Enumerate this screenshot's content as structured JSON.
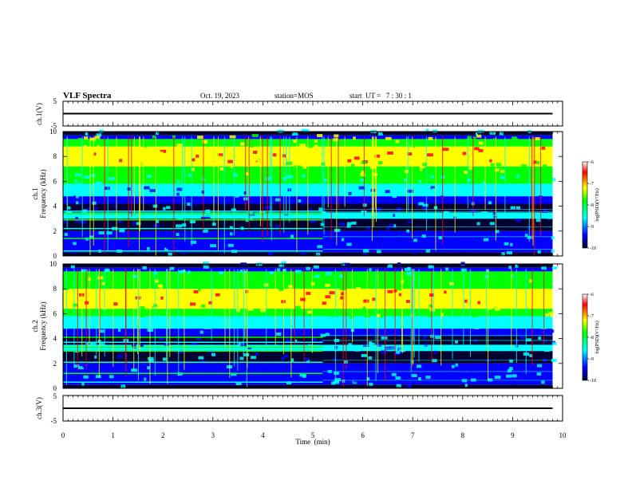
{
  "header": {
    "title": "VLF Spectra",
    "date": "Oct. 19, 2023",
    "station": "station=MOS",
    "start": "start  UT =   7 : 30 : 1"
  },
  "chart_data": {
    "type": "heatmap",
    "title": "VLF Spectra",
    "xlabel": "Time  (min)",
    "xlim": [
      0,
      10
    ],
    "xticks": [
      "0",
      "1",
      "2",
      "3",
      "4",
      "5",
      "6",
      "7",
      "8",
      "9",
      "10"
    ],
    "panels": [
      {
        "name": "ch.1(V)",
        "type": "line",
        "ylabel": "ch.1(V)",
        "ylim": [
          -5,
          5
        ],
        "yticks": [
          "5",
          "-5"
        ],
        "x": [
          0,
          9.8
        ],
        "y": [
          0,
          0
        ]
      },
      {
        "name": "ch.1 Frequency (kHz)",
        "type": "heatmap",
        "ylabel": "ch.1\nFrequency (kHz)",
        "ylim": [
          0,
          10
        ],
        "yticks": [
          "0",
          "2",
          "4",
          "6",
          "8",
          "10"
        ],
        "data_x_range": [
          0,
          9.8
        ],
        "colorbar": {
          "label": "log(PSD)(V²/Hz)",
          "range": [
            -10,
            -6
          ],
          "ticks": [
            "-6",
            "-7",
            "-8",
            "-9",
            "-10"
          ]
        }
      },
      {
        "name": "ch.2 Frequency (kHz)",
        "type": "heatmap",
        "ylabel": "ch.2\nFrequency (kHz)",
        "ylim": [
          0,
          10
        ],
        "yticks": [
          "0",
          "2",
          "4",
          "6",
          "8",
          "10"
        ],
        "data_x_range": [
          0,
          9.8
        ],
        "colorbar": {
          "label": "log(PSD)(V²/Hz)",
          "range": [
            -10,
            -6
          ],
          "ticks": [
            "-6",
            "-7",
            "-8",
            "-9",
            "-10"
          ]
        }
      },
      {
        "name": "ch.3(V)",
        "type": "line",
        "ylabel": "ch.3(V)",
        "ylim": [
          -5,
          5
        ],
        "yticks": [
          "5",
          "-5"
        ],
        "x": [
          0,
          9.8
        ],
        "y": [
          0,
          0
        ]
      }
    ],
    "colormap": [
      "#000033",
      "#0000ff",
      "#00ffff",
      "#00ff00",
      "#ffff00",
      "#ff0000",
      "#ffffff"
    ]
  }
}
